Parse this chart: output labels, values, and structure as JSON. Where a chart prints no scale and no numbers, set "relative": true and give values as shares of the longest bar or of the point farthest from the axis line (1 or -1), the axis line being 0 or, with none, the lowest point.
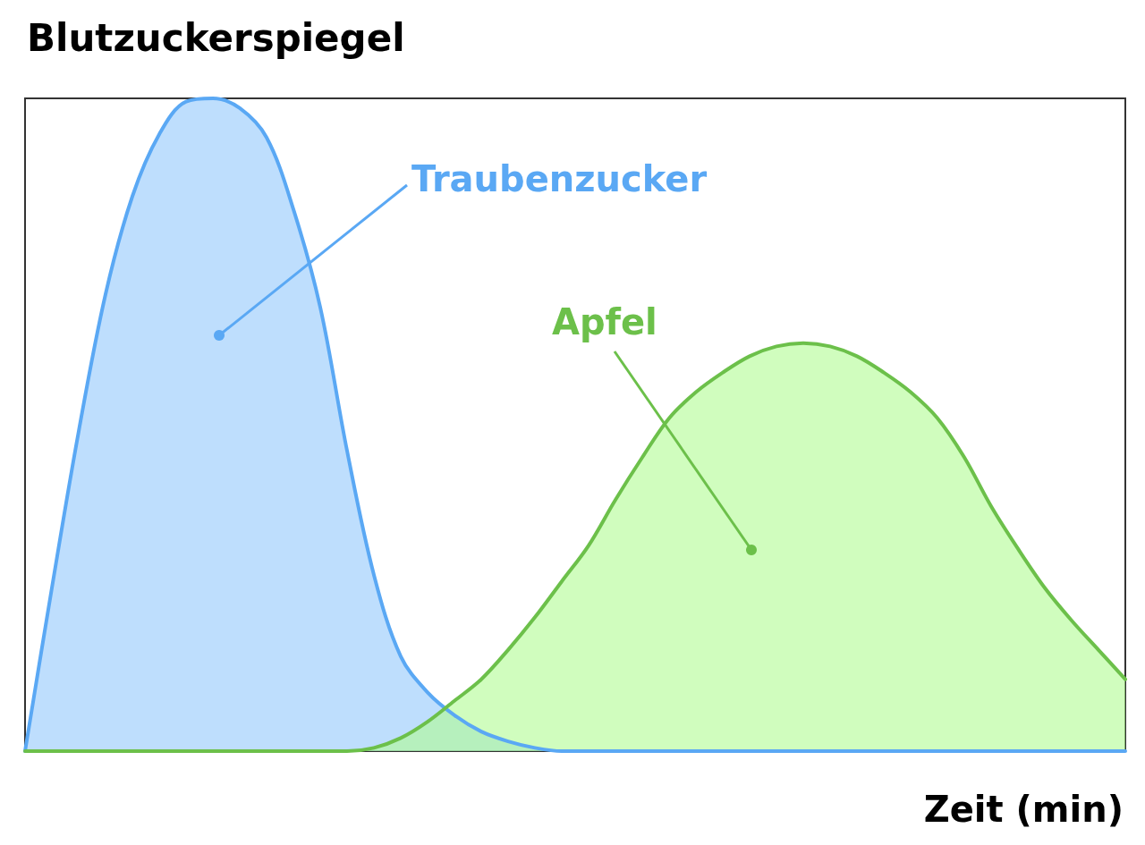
{
  "chart_data": {
    "type": "area",
    "relative": true,
    "ylabel": "Blutzuckerspiegel",
    "xlabel": "Zeit (min)",
    "grid": false,
    "legend": false,
    "categories": [
      null,
      null,
      null,
      null,
      null,
      null,
      null,
      null,
      null,
      null,
      null,
      null,
      null,
      null,
      null,
      null,
      null,
      null,
      null,
      null,
      null,
      null,
      null,
      null,
      null,
      null,
      null,
      null,
      null,
      null,
      null,
      null,
      null,
      null,
      null,
      null,
      null,
      null,
      null,
      null,
      null,
      null
    ],
    "series": [
      {
        "name": "Traubenzucker",
        "color": "#5aa8f4",
        "values": [
          0,
          0.25,
          0.49,
          0.7,
          0.85,
          0.945,
          0.995,
          1,
          0.985,
          0.94,
          0.83,
          0.68,
          0.46,
          0.27,
          0.145,
          0.09,
          0.055,
          0.03,
          0.015,
          0.005,
          0,
          0,
          0,
          0,
          0,
          0,
          0,
          0,
          0,
          0,
          0,
          0,
          0,
          0,
          0,
          0,
          0,
          0,
          0,
          0,
          0,
          0
        ]
      },
      {
        "name": "Apfel",
        "color": "#6cc04a",
        "values": [
          0,
          0,
          0,
          0,
          0,
          0,
          0,
          0,
          0,
          0,
          0,
          0,
          0,
          0.005,
          0.02,
          0.045,
          0.077,
          0.11,
          0.155,
          0.205,
          0.26,
          0.315,
          0.385,
          0.45,
          0.51,
          0.55,
          0.58,
          0.605,
          0.62,
          0.625,
          0.62,
          0.605,
          0.58,
          0.55,
          0.51,
          0.45,
          0.375,
          0.31,
          0.25,
          0.2,
          0.155,
          0.11
        ]
      }
    ]
  }
}
